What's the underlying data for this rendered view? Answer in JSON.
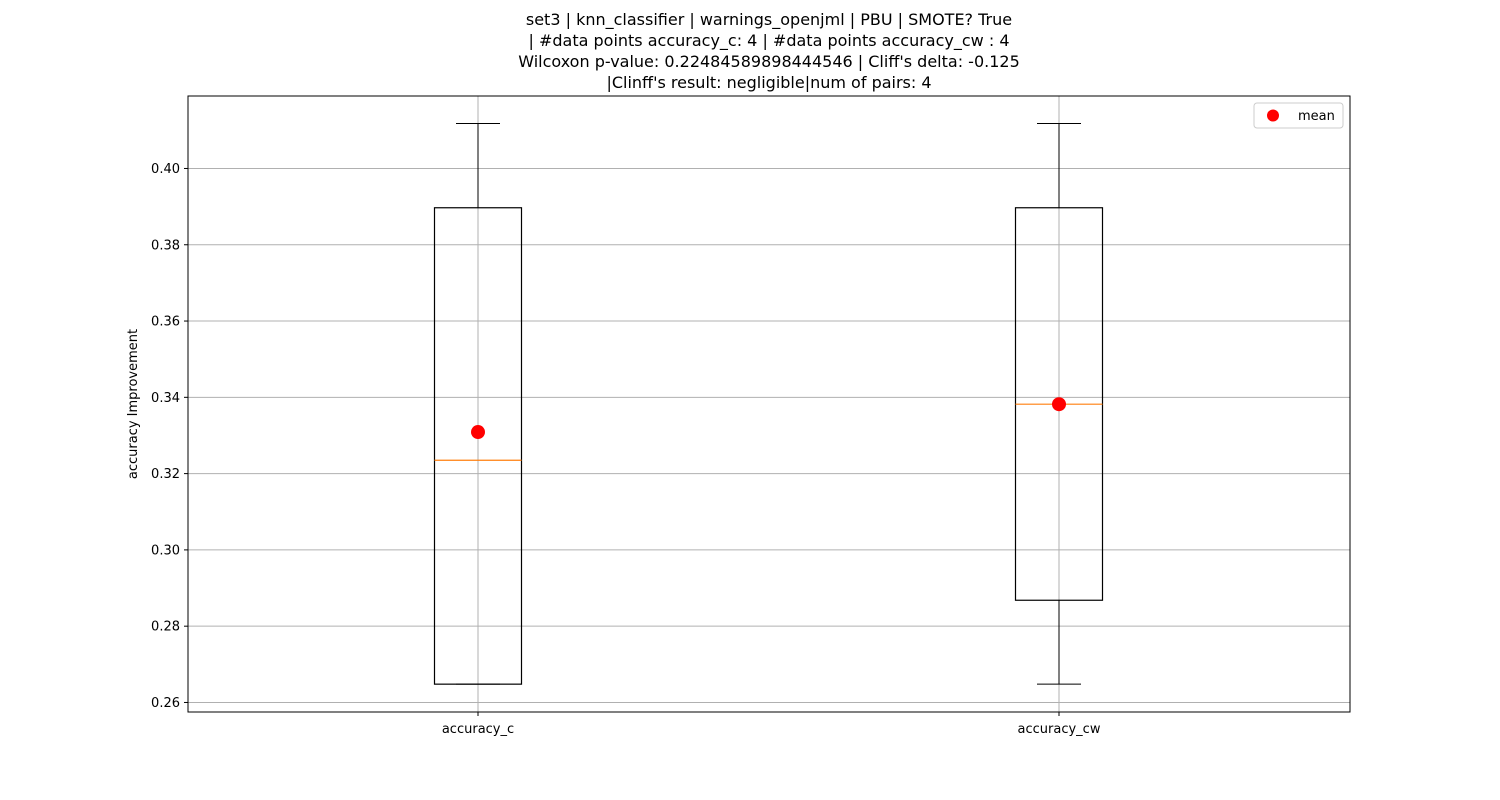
{
  "chart_data": {
    "type": "boxplot",
    "title": [
      "set3 | knn_classifier | warnings_openjml | PBU | SMOTE? True",
      " | #data points accuracy_c: 4 | #data points accuracy_cw : 4",
      "Wilcoxon p-value: 0.22484589898444546 | Cliff's delta: -0.125",
      "|Clinff's result: negligible|num of pairs: 4"
    ],
    "xlabel": "",
    "ylabel": "accuracy Improvement",
    "ylim": [
      0.2575,
      0.419
    ],
    "yticks": [
      0.26,
      0.28,
      0.3,
      0.32,
      0.34,
      0.36,
      0.38,
      0.4
    ],
    "ytick_labels": [
      "0.26",
      "0.28",
      "0.30",
      "0.32",
      "0.34",
      "0.36",
      "0.38",
      "0.40"
    ],
    "grid": true,
    "legend": {
      "placement": "top-right",
      "entries": [
        {
          "label": "mean",
          "color": "#ff0000",
          "marker": "circle"
        }
      ]
    },
    "categories": [
      "accuracy_c",
      "accuracy_cw"
    ],
    "boxes": [
      {
        "category": "accuracy_c",
        "whisker_low": 0.2648,
        "q1": 0.2648,
        "median": 0.3235,
        "q3": 0.3897,
        "whisker_high": 0.4118,
        "mean": 0.3309
      },
      {
        "category": "accuracy_cw",
        "whisker_low": 0.2648,
        "q1": 0.2868,
        "median": 0.3382,
        "q3": 0.3897,
        "whisker_high": 0.4118,
        "mean": 0.3382
      }
    ],
    "colors": {
      "box": "#000000",
      "median": "#ff7f0e",
      "mean": "#ff0000",
      "grid": "#b0b0b0"
    }
  }
}
